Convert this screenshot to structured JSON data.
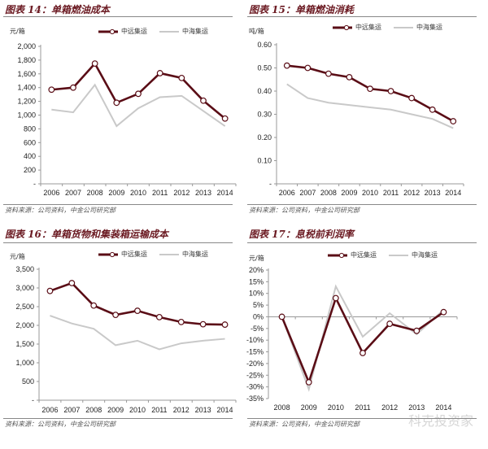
{
  "colors": {
    "cosco": "#5a0d16",
    "cscl": "#c9c9c9"
  },
  "watermark": "科克投资家",
  "chart_data": [
    {
      "type": "line",
      "title": "图表 14：单箱燃油成本",
      "unit": "元/箱",
      "source": "资料来源：公司资料，中金公司研究部",
      "categories": [
        "2006",
        "2007",
        "2008",
        "2009",
        "2010",
        "2011",
        "2012",
        "2013",
        "2014"
      ],
      "yticks": [
        "-",
        "200",
        "400",
        "600",
        "800",
        "1,000",
        "1,200",
        "1,400",
        "1,600",
        "1,800",
        "2,000"
      ],
      "ylim": [
        0,
        2000
      ],
      "series": [
        {
          "name": "中远集运",
          "values": [
            1370,
            1400,
            1750,
            1180,
            1310,
            1610,
            1540,
            1210,
            950
          ]
        },
        {
          "name": "中海集运",
          "values": [
            1080,
            1040,
            1440,
            840,
            1100,
            1260,
            1280,
            1060,
            840
          ]
        }
      ]
    },
    {
      "type": "line",
      "title": "图表 15：单箱燃油消耗",
      "unit": "吨/箱",
      "source": "资料来源：公司资料，中金公司研究部",
      "categories": [
        "2006",
        "2007",
        "2008",
        "2009",
        "2010",
        "2011",
        "2012",
        "2013",
        "2014"
      ],
      "yticks": [
        "-",
        "0.10",
        "0.20",
        "0.30",
        "0.40",
        "0.50",
        "0.60"
      ],
      "ylim": [
        0,
        0.6
      ],
      "series": [
        {
          "name": "中远集运",
          "values": [
            0.51,
            0.5,
            0.475,
            0.46,
            0.41,
            0.4,
            0.37,
            0.32,
            0.27
          ]
        },
        {
          "name": "中海集运",
          "values": [
            0.43,
            0.37,
            0.35,
            0.34,
            0.33,
            0.32,
            0.3,
            0.28,
            0.24
          ]
        }
      ]
    },
    {
      "type": "line",
      "title": "图表 16：单箱货物和集装箱运输成本",
      "unit": "元/箱",
      "source": "资料来源：公司资料，中金公司研究部",
      "categories": [
        "2006",
        "2007",
        "2008",
        "2009",
        "2010",
        "2011",
        "2012",
        "2013",
        "2014"
      ],
      "yticks": [
        "-",
        "500",
        "1,000",
        "1,500",
        "2,000",
        "2,500",
        "3,000",
        "3,500"
      ],
      "ylim": [
        0,
        3500
      ],
      "series": [
        {
          "name": "中远集运",
          "values": [
            2920,
            3130,
            2530,
            2280,
            2390,
            2220,
            2090,
            2030,
            2020
          ]
        },
        {
          "name": "中海集运",
          "values": [
            2260,
            2050,
            1910,
            1470,
            1590,
            1360,
            1520,
            1590,
            1640
          ]
        }
      ]
    },
    {
      "type": "line",
      "title": "图表 17：息税前利润率",
      "unit": "元/箱",
      "source": "资料来源：公司资料，中金公司研究部",
      "categories": [
        "2008",
        "2009",
        "2010",
        "2011",
        "2012",
        "2013",
        "2014"
      ],
      "yticks": [
        "-35%",
        "-30%",
        "-25%",
        "-20%",
        "-15%",
        "-10%",
        "-5%",
        "0%",
        "5%",
        "10%",
        "15%",
        "20%"
      ],
      "ylim": [
        -35,
        20
      ],
      "series": [
        {
          "name": "中远集运",
          "values": [
            0,
            -28,
            8,
            -15.5,
            -3,
            -6,
            2
          ]
        },
        {
          "name": "中海集运",
          "values": [
            0,
            -31,
            13,
            -8.5,
            1.5,
            -7.5,
            3
          ]
        }
      ]
    }
  ]
}
